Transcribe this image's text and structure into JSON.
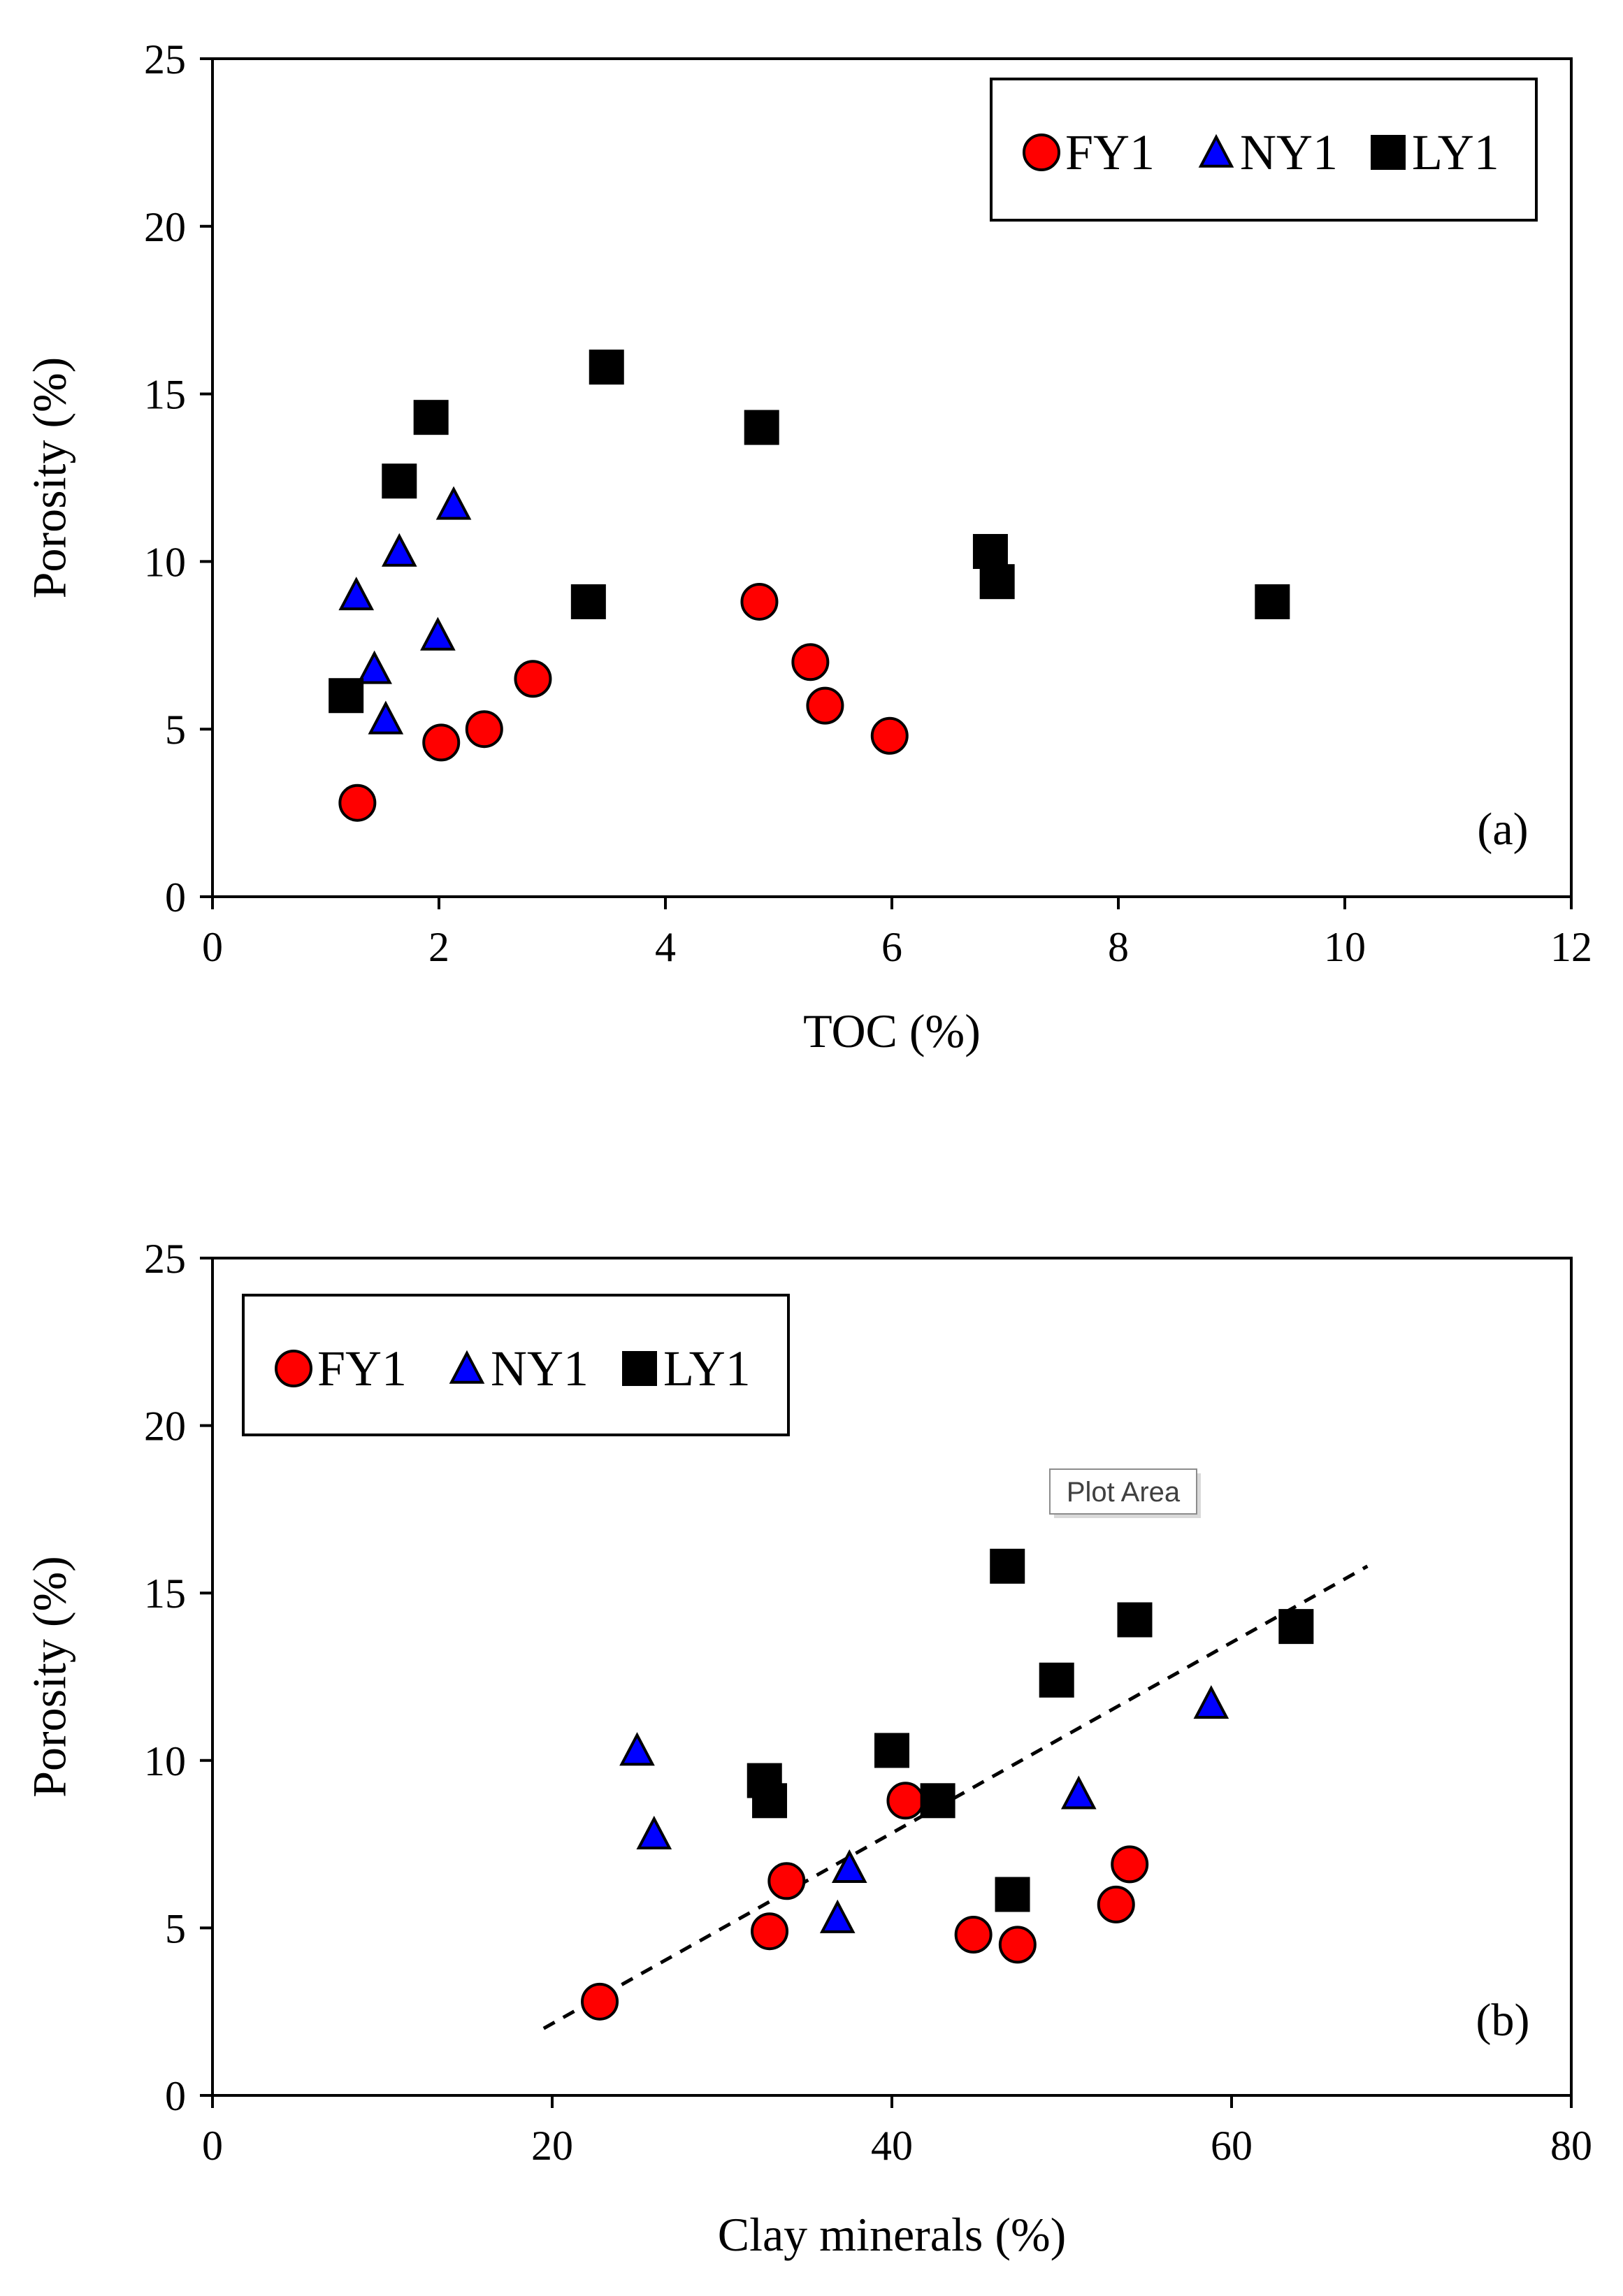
{
  "colors": {
    "FY1": "#ff0000",
    "NY1": "#0000ff",
    "LY1": "#000000",
    "axis": "#000000",
    "trendline": "#000000"
  },
  "tooltip": {
    "text": "Plot Area"
  },
  "chart_data": [
    {
      "type": "scatter",
      "panel_label": "(a)",
      "xlabel": "TOC (%)",
      "ylabel": "Porosity (%)",
      "xlim": [
        0,
        12
      ],
      "ylim": [
        0,
        25
      ],
      "xticks": [
        0,
        2,
        4,
        6,
        8,
        10,
        12
      ],
      "yticks": [
        0,
        5,
        10,
        15,
        20,
        25
      ],
      "grid": false,
      "legend_position": "top-right",
      "series": [
        {
          "name": "FY1",
          "marker": "circle",
          "x": [
            1.28,
            2.02,
            2.4,
            2.83,
            4.83,
            5.28,
            5.41,
            5.98
          ],
          "y": [
            2.8,
            4.6,
            5.0,
            6.5,
            8.8,
            7.0,
            5.7,
            4.8
          ]
        },
        {
          "name": "NY1",
          "marker": "triangle",
          "x": [
            1.27,
            1.43,
            1.53,
            1.65,
            1.99,
            2.13
          ],
          "y": [
            9.0,
            6.8,
            5.3,
            10.3,
            7.8,
            11.7
          ]
        },
        {
          "name": "LY1",
          "marker": "square",
          "x": [
            1.18,
            1.65,
            1.93,
            3.32,
            3.48,
            4.85,
            6.87,
            6.93,
            9.36
          ],
          "y": [
            6.0,
            12.4,
            14.3,
            8.8,
            15.8,
            14.0,
            10.3,
            9.4,
            8.8
          ]
        }
      ]
    },
    {
      "type": "scatter",
      "panel_label": "(b)",
      "xlabel": "Clay minerals (%)",
      "ylabel": "Porosity (%)",
      "xlim": [
        0,
        80
      ],
      "ylim": [
        0,
        25
      ],
      "xticks": [
        0,
        20,
        40,
        60,
        80
      ],
      "yticks": [
        0,
        5,
        10,
        15,
        20,
        25
      ],
      "grid": false,
      "legend_position": "top-left",
      "trendline": {
        "style": "dashed",
        "x": [
          19.5,
          68
        ],
        "y": [
          2.0,
          15.8
        ]
      },
      "series": [
        {
          "name": "FY1",
          "marker": "circle",
          "x": [
            22.8,
            32.8,
            33.8,
            40.8,
            44.8,
            47.4,
            53.2,
            54.0
          ],
          "y": [
            2.8,
            4.9,
            6.4,
            8.8,
            4.8,
            4.5,
            5.7,
            6.9
          ]
        },
        {
          "name": "NY1",
          "marker": "triangle",
          "x": [
            25.0,
            26.0,
            36.8,
            37.5,
            51.0,
            58.8
          ],
          "y": [
            10.3,
            7.8,
            5.3,
            6.8,
            9.0,
            11.7
          ]
        },
        {
          "name": "LY1",
          "marker": "square",
          "x": [
            32.5,
            32.8,
            40.0,
            42.7,
            46.8,
            47.1,
            49.7,
            54.3,
            63.8
          ],
          "y": [
            9.4,
            8.8,
            10.3,
            8.8,
            15.8,
            6.0,
            12.4,
            14.2,
            14.0
          ]
        }
      ]
    }
  ]
}
